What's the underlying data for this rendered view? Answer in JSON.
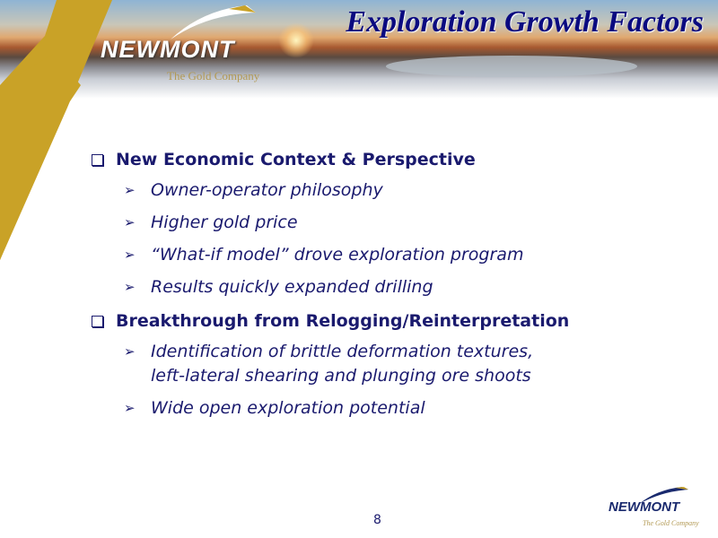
{
  "title": "Exploration Growth Factors",
  "logo": {
    "name": "NEWMONT",
    "tagline": "The Gold Company"
  },
  "sections": [
    {
      "heading": "New Economic Context & Perspective",
      "items": [
        "Owner-operator philosophy",
        "Higher gold price",
        "“What-if model” drove exploration program",
        "Results quickly expanded drilling"
      ]
    },
    {
      "heading": "Breakthrough from Relogging/Reinterpretation",
      "items": [
        "Identification of brittle deformation textures, left-lateral shearing and plunging ore shoots",
        "Wide open exploration potential"
      ]
    }
  ],
  "page_number": "8",
  "colors": {
    "text": "#1a1a6e",
    "gold": "#c9a227"
  }
}
